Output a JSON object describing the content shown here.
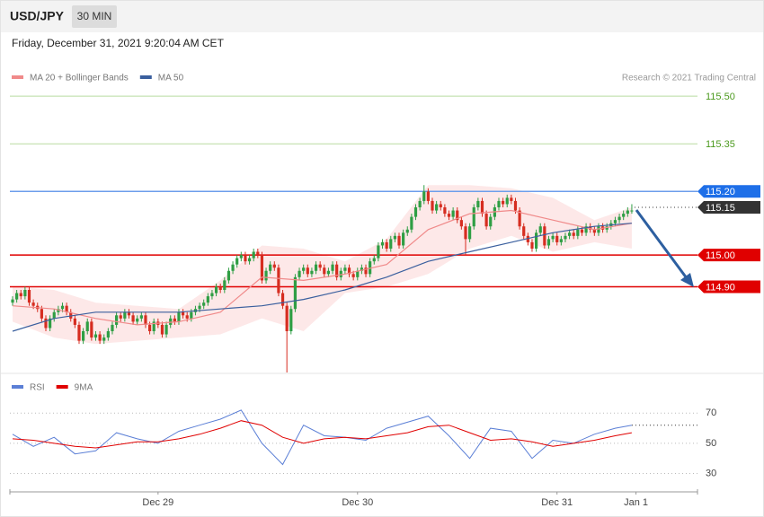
{
  "header": {
    "symbol": "USD/JPY",
    "interval": "30 MIN",
    "timestamp": "Friday, December 31, 2021 9:20:04 AM CET",
    "credit": "Research © 2021 Trading Central"
  },
  "chart_data": [
    {
      "type": "candlestick",
      "xlim": [
        -0.65,
        164.8
      ],
      "ylim": [
        114.63,
        115.605
      ],
      "up_color": "#2f9e44",
      "down_color": "#d62d20",
      "open": [
        114.85,
        114.86,
        114.88,
        114.87,
        114.89,
        114.85,
        114.84,
        114.83,
        114.8,
        114.77,
        114.8,
        114.82,
        114.83,
        114.84,
        114.82,
        114.8,
        114.78,
        114.73,
        114.76,
        114.79,
        114.74,
        114.75,
        114.73,
        114.74,
        114.76,
        114.78,
        114.81,
        114.8,
        114.82,
        114.81,
        114.79,
        114.8,
        114.81,
        114.78,
        114.76,
        114.79,
        114.78,
        114.75,
        114.78,
        114.8,
        114.79,
        114.82,
        114.81,
        114.8,
        114.82,
        114.83,
        114.84,
        114.85,
        114.87,
        114.88,
        114.9,
        114.89,
        114.92,
        114.95,
        114.97,
        114.99,
        115.0,
        114.98,
        114.99,
        115.01,
        115.0,
        114.92,
        114.95,
        114.97,
        114.96,
        114.88,
        114.84,
        114.76,
        114.83,
        114.93,
        114.95,
        114.96,
        114.94,
        114.95,
        114.97,
        114.96,
        114.94,
        114.95,
        114.97,
        114.93,
        114.95,
        114.96,
        114.94,
        114.93,
        114.95,
        114.96,
        114.94,
        114.98,
        114.99,
        115.03,
        115.04,
        115.02,
        115.05,
        115.06,
        115.03,
        115.07,
        115.08,
        115.12,
        115.15,
        115.17,
        115.2,
        115.17,
        115.14,
        115.16,
        115.15,
        115.13,
        115.12,
        115.14,
        115.11,
        115.09,
        115.05,
        115.09,
        115.15,
        115.17,
        115.13,
        115.09,
        115.12,
        115.15,
        115.17,
        115.16,
        115.18,
        115.17,
        115.14,
        115.09,
        115.06,
        115.04,
        115.02,
        115.07,
        115.09,
        115.03,
        115.05,
        115.06,
        115.04,
        115.05,
        115.06,
        115.07,
        115.06,
        115.08,
        115.07,
        115.09,
        115.08,
        115.07,
        115.09,
        115.08,
        115.09,
        115.1,
        115.11,
        115.12,
        115.13,
        115.14
      ],
      "high": [
        114.87,
        114.89,
        114.89,
        114.9,
        114.9,
        114.86,
        114.85,
        114.84,
        114.81,
        114.81,
        114.83,
        114.84,
        114.85,
        114.85,
        114.83,
        114.81,
        114.79,
        114.77,
        114.8,
        114.8,
        114.76,
        114.76,
        114.75,
        114.77,
        114.79,
        114.82,
        114.82,
        114.83,
        114.83,
        114.82,
        114.81,
        114.82,
        114.82,
        114.79,
        114.8,
        114.8,
        114.79,
        114.79,
        114.81,
        114.81,
        114.83,
        114.83,
        114.82,
        114.83,
        114.84,
        114.85,
        114.86,
        114.88,
        114.89,
        114.91,
        114.91,
        114.93,
        114.96,
        114.98,
        115.0,
        115.01,
        115.01,
        115.0,
        115.02,
        115.02,
        115.01,
        114.96,
        114.98,
        114.98,
        114.97,
        114.89,
        114.85,
        114.84,
        114.94,
        114.96,
        114.97,
        114.97,
        114.96,
        114.98,
        114.98,
        114.97,
        114.96,
        114.98,
        114.98,
        114.96,
        114.97,
        114.97,
        114.95,
        114.96,
        114.97,
        114.97,
        114.99,
        115.0,
        115.04,
        115.05,
        115.05,
        115.06,
        115.07,
        115.07,
        115.08,
        115.09,
        115.13,
        115.16,
        115.18,
        115.22,
        115.21,
        115.18,
        115.17,
        115.17,
        115.16,
        115.14,
        115.15,
        115.15,
        115.12,
        115.1,
        115.1,
        115.16,
        115.18,
        115.18,
        115.14,
        115.13,
        115.16,
        115.18,
        115.18,
        115.19,
        115.19,
        115.18,
        115.15,
        115.1,
        115.07,
        115.05,
        115.08,
        115.1,
        115.1,
        115.06,
        115.07,
        115.07,
        115.06,
        115.07,
        115.08,
        115.08,
        115.09,
        115.09,
        115.1,
        115.1,
        115.09,
        115.1,
        115.1,
        115.1,
        115.11,
        115.12,
        115.13,
        115.14,
        115.15,
        115.16
      ],
      "low": [
        114.84,
        114.85,
        114.86,
        114.86,
        114.84,
        114.83,
        114.82,
        114.79,
        114.76,
        114.76,
        114.79,
        114.81,
        114.82,
        114.81,
        114.79,
        114.77,
        114.72,
        114.72,
        114.75,
        114.73,
        114.73,
        114.72,
        114.72,
        114.73,
        114.75,
        114.77,
        114.79,
        114.79,
        114.8,
        114.78,
        114.78,
        114.79,
        114.77,
        114.75,
        114.75,
        114.77,
        114.74,
        114.74,
        114.77,
        114.78,
        114.78,
        114.8,
        114.79,
        114.79,
        114.81,
        114.82,
        114.83,
        114.84,
        114.86,
        114.87,
        114.88,
        114.88,
        114.91,
        114.94,
        114.96,
        114.98,
        114.97,
        114.97,
        114.98,
        114.99,
        114.91,
        114.91,
        114.94,
        114.95,
        114.87,
        114.83,
        114.63,
        114.75,
        114.82,
        114.92,
        114.94,
        114.93,
        114.93,
        114.94,
        114.95,
        114.93,
        114.93,
        114.94,
        114.92,
        114.92,
        114.94,
        114.93,
        114.92,
        114.92,
        114.94,
        114.93,
        114.93,
        114.97,
        114.98,
        115.02,
        115.01,
        115.01,
        115.04,
        115.02,
        115.02,
        115.06,
        115.07,
        115.11,
        115.14,
        115.16,
        115.16,
        115.13,
        115.13,
        115.14,
        115.12,
        115.11,
        115.11,
        115.1,
        115.08,
        115.0,
        115.04,
        115.08,
        115.14,
        115.12,
        115.08,
        115.08,
        115.11,
        115.14,
        115.15,
        115.15,
        115.16,
        115.13,
        115.08,
        115.05,
        115.03,
        115.01,
        115.01,
        115.06,
        115.02,
        115.02,
        115.04,
        115.03,
        115.03,
        115.04,
        115.05,
        115.05,
        115.05,
        115.06,
        115.06,
        115.07,
        115.06,
        115.06,
        115.07,
        115.07,
        115.08,
        115.09,
        115.1,
        115.11,
        115.12,
        115.13
      ],
      "close": [
        114.86,
        114.88,
        114.87,
        114.89,
        114.85,
        114.84,
        114.83,
        114.8,
        114.77,
        114.8,
        114.82,
        114.83,
        114.84,
        114.82,
        114.8,
        114.78,
        114.73,
        114.76,
        114.79,
        114.74,
        114.75,
        114.73,
        114.74,
        114.76,
        114.78,
        114.81,
        114.8,
        114.82,
        114.81,
        114.79,
        114.8,
        114.81,
        114.78,
        114.76,
        114.79,
        114.78,
        114.75,
        114.78,
        114.8,
        114.79,
        114.82,
        114.81,
        114.8,
        114.82,
        114.83,
        114.84,
        114.85,
        114.87,
        114.88,
        114.9,
        114.89,
        114.92,
        114.95,
        114.97,
        114.99,
        115.0,
        114.98,
        114.99,
        115.01,
        115.0,
        114.92,
        114.95,
        114.97,
        114.96,
        114.88,
        114.84,
        114.76,
        114.83,
        114.93,
        114.95,
        114.96,
        114.94,
        114.95,
        114.97,
        114.96,
        114.94,
        114.95,
        114.97,
        114.93,
        114.95,
        114.96,
        114.94,
        114.93,
        114.95,
        114.96,
        114.94,
        114.98,
        114.99,
        115.03,
        115.04,
        115.02,
        115.05,
        115.06,
        115.03,
        115.07,
        115.08,
        115.12,
        115.15,
        115.17,
        115.2,
        115.17,
        115.14,
        115.16,
        115.15,
        115.13,
        115.12,
        115.14,
        115.11,
        115.09,
        115.05,
        115.09,
        115.15,
        115.17,
        115.13,
        115.09,
        115.12,
        115.15,
        115.17,
        115.16,
        115.18,
        115.17,
        115.14,
        115.09,
        115.06,
        115.04,
        115.02,
        115.07,
        115.09,
        115.03,
        115.05,
        115.06,
        115.04,
        115.05,
        115.06,
        115.07,
        115.06,
        115.08,
        115.07,
        115.09,
        115.08,
        115.07,
        115.09,
        115.08,
        115.09,
        115.1,
        115.11,
        115.12,
        115.13,
        115.14,
        115.14
      ],
      "series": [
        {
          "name": "MA 20 + Bollinger Bands",
          "color": "#f08a8a",
          "band_color": "#fde2e2",
          "x": [
            0,
            10,
            20,
            30,
            40,
            50,
            60,
            70,
            80,
            90,
            100,
            110,
            120,
            130,
            140,
            149
          ],
          "values": [
            114.84,
            114.83,
            114.8,
            114.78,
            114.79,
            114.82,
            114.93,
            114.92,
            114.94,
            114.97,
            115.08,
            115.13,
            115.14,
            115.11,
            115.08,
            115.1
          ],
          "upper": [
            114.9,
            114.89,
            114.85,
            114.84,
            114.83,
            114.92,
            115.03,
            115.02,
            114.98,
            115.05,
            115.22,
            115.22,
            115.21,
            115.18,
            115.11,
            115.15
          ],
          "lower": [
            114.79,
            114.74,
            114.72,
            114.73,
            114.74,
            114.75,
            114.8,
            114.76,
            114.88,
            114.9,
            114.94,
            115.02,
            115.06,
            115.01,
            115.04,
            115.02
          ]
        },
        {
          "name": "MA 50",
          "color": "#3a5f9e",
          "x": [
            0,
            10,
            20,
            30,
            40,
            50,
            60,
            70,
            80,
            90,
            100,
            110,
            120,
            130,
            140,
            149
          ],
          "values": [
            114.76,
            114.8,
            114.82,
            114.82,
            114.82,
            114.83,
            114.84,
            114.86,
            114.89,
            114.93,
            114.98,
            115.01,
            115.04,
            115.07,
            115.09,
            115.1
          ]
        }
      ],
      "levels": [
        {
          "value": 115.5,
          "label": "115.50",
          "color": "#b9dca0",
          "text_color": "#4c9a1f"
        },
        {
          "value": 115.35,
          "label": "115.35",
          "color": "#b9dca0",
          "text_color": "#4c9a1f"
        },
        {
          "value": 115.2,
          "label": "115.20",
          "color": "#6d9eeb",
          "tag_color": "#1e6fe8"
        },
        {
          "value": 115.15,
          "label": "115.15",
          "color": "#333333",
          "tag_color": "#333333",
          "dotted": true
        },
        {
          "value": 115.0,
          "label": "115.00",
          "color": "#e00000",
          "tag_color": "#e00000"
        },
        {
          "value": 114.9,
          "label": "114.90",
          "color": "#e00000",
          "tag_color": "#e00000"
        }
      ]
    },
    {
      "type": "line",
      "xlim": [
        -0.65,
        164.8
      ],
      "ylim": [
        22,
        88
      ],
      "yticks": [
        30,
        50,
        70
      ],
      "xticks": [
        {
          "value": 35,
          "label": "Dec 29"
        },
        {
          "value": 83,
          "label": "Dec 30"
        },
        {
          "value": 131,
          "label": "Dec 31"
        },
        {
          "value": 150,
          "label": "Jan 1"
        }
      ],
      "x": [
        0,
        5,
        10,
        15,
        20,
        25,
        30,
        35,
        40,
        45,
        50,
        55,
        60,
        65,
        70,
        75,
        80,
        85,
        90,
        95,
        100,
        105,
        110,
        115,
        120,
        125,
        130,
        135,
        140,
        145,
        149
      ],
      "series": [
        {
          "name": "RSI",
          "color": "#5b7fd6",
          "values": [
            56,
            48,
            54,
            43,
            45,
            57,
            53,
            50,
            58,
            62,
            66,
            72,
            50,
            36,
            62,
            55,
            54,
            52,
            60,
            64,
            68,
            55,
            40,
            60,
            58,
            40,
            52,
            50,
            56,
            60,
            62
          ]
        },
        {
          "name": "9MA",
          "color": "#e00000",
          "values": [
            53,
            52,
            50,
            48,
            47,
            49,
            51,
            51,
            53,
            56,
            60,
            65,
            62,
            54,
            50,
            53,
            54,
            53,
            55,
            57,
            61,
            62,
            57,
            52,
            53,
            51,
            48,
            50,
            52,
            55,
            57
          ]
        }
      ]
    }
  ]
}
